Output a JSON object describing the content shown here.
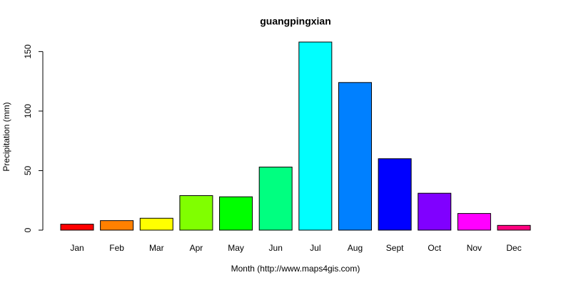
{
  "chart_data": {
    "type": "bar",
    "title": "guangpingxian",
    "x_label": "Month (http://www.maps4gis.com)",
    "y_label": "Precipitation (mm)",
    "categories": [
      "Jan",
      "Feb",
      "Mar",
      "Apr",
      "May",
      "Jun",
      "Jul",
      "Aug",
      "Sept",
      "Oct",
      "Nov",
      "Dec"
    ],
    "values": [
      5,
      8,
      10,
      29,
      28,
      53,
      158,
      124,
      60,
      31,
      14,
      4
    ],
    "colors": [
      "#ff0000",
      "#ff8000",
      "#ffff00",
      "#80ff00",
      "#00ff00",
      "#00ff80",
      "#00ffff",
      "#0080ff",
      "#0000ff",
      "#8000ff",
      "#ff00ff",
      "#ff0080"
    ],
    "ylim": [
      0,
      158
    ],
    "yticks": [
      0,
      50,
      100,
      150
    ]
  }
}
